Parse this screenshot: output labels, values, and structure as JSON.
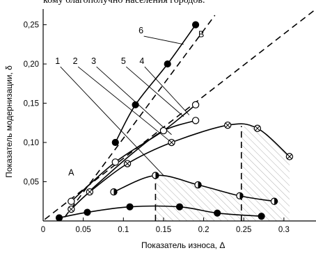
{
  "header": {
    "text": "кому благополучно населения городов."
  },
  "chart_data": {
    "type": "scatter",
    "title": "",
    "xlabel": "Показатель износа, Δ",
    "ylabel": "Показатель модернизации, δ",
    "xlim": [
      0,
      0.34
    ],
    "ylim": [
      0,
      0.27
    ],
    "x_ticks": [
      {
        "v": 0,
        "label": "0"
      },
      {
        "v": 0.05,
        "label": "0.05"
      },
      {
        "v": 0.1,
        "label": "0.1"
      },
      {
        "v": 0.15,
        "label": "0.15"
      },
      {
        "v": 0.2,
        "label": "0.2"
      },
      {
        "v": 0.25,
        "label": "0.25"
      },
      {
        "v": 0.3,
        "label": "0.3"
      }
    ],
    "y_ticks": [
      {
        "v": 0.05,
        "label": "0,05"
      },
      {
        "v": 0.1,
        "label": "0,10"
      },
      {
        "v": 0.15,
        "label": "0,15"
      },
      {
        "v": 0.2,
        "label": "0,20"
      },
      {
        "v": 0.25,
        "label": "0,25"
      }
    ],
    "region_labels": [
      {
        "text": "A",
        "x": 0.035,
        "y": 0.058
      },
      {
        "text": "B",
        "x": 0.197,
        "y": 0.234
      }
    ],
    "boundary_lines": [
      {
        "x": [
          0.002,
          0.34
        ],
        "y": [
          0.002,
          0.27
        ]
      },
      {
        "x": [
          0.027,
          0.214
        ],
        "y": [
          0.005,
          0.262
        ]
      }
    ],
    "dividers_x": [
      0.14,
      0.247
    ],
    "series": [
      {
        "id": "6",
        "marker": "filled",
        "x": [
          0.09,
          0.115,
          0.155,
          0.19
        ],
        "y": [
          0.1,
          0.148,
          0.2,
          0.25
        ]
      },
      {
        "id": "5",
        "marker": "open",
        "x": [
          0.035,
          0.09,
          0.15,
          0.19
        ],
        "y": [
          0.025,
          0.075,
          0.115,
          0.148
        ]
      },
      {
        "id": "4",
        "marker": "open",
        "x": [
          0.19
        ],
        "y": [
          0.128
        ]
      },
      {
        "id": "3",
        "marker": "crossed",
        "x": [
          0.035,
          0.058,
          0.105,
          0.16,
          0.23,
          0.267,
          0.307
        ],
        "y": [
          0.015,
          0.037,
          0.073,
          0.1,
          0.122,
          0.118,
          0.082
        ]
      },
      {
        "id": "2",
        "marker": "half",
        "x": [
          0.088,
          0.14,
          0.193,
          0.245,
          0.288
        ],
        "y": [
          0.037,
          0.058,
          0.046,
          0.032,
          0.025
        ]
      },
      {
        "id": "1",
        "marker": "filled",
        "x": [
          0.02,
          0.055,
          0.108,
          0.17,
          0.217,
          0.272
        ],
        "y": [
          0.004,
          0.011,
          0.018,
          0.018,
          0.01,
          0.006
        ]
      }
    ],
    "curve_labels": [
      {
        "text": "1",
        "x": 0.018,
        "y": 0.2
      },
      {
        "text": "2",
        "x": 0.04,
        "y": 0.2
      },
      {
        "text": "3",
        "x": 0.063,
        "y": 0.2
      },
      {
        "text": "5",
        "x": 0.1,
        "y": 0.2
      },
      {
        "text": "4",
        "x": 0.123,
        "y": 0.2
      },
      {
        "text": "6",
        "x": 0.122,
        "y": 0.239
      }
    ]
  }
}
